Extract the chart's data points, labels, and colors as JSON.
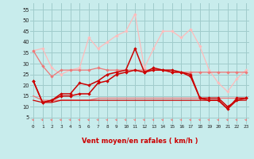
{
  "x": [
    0,
    1,
    2,
    3,
    4,
    5,
    6,
    7,
    8,
    9,
    10,
    11,
    12,
    13,
    14,
    15,
    16,
    17,
    18,
    19,
    20,
    21,
    22,
    23
  ],
  "rafales_light": [
    36,
    37,
    28,
    25,
    27,
    28,
    42,
    37,
    40,
    43,
    45,
    53,
    28,
    37,
    45,
    45,
    42,
    46,
    38,
    27,
    21,
    17,
    23,
    27
  ],
  "rafales_mid": [
    36,
    29,
    24,
    27,
    27,
    27,
    27,
    28,
    27,
    27,
    27,
    27,
    27,
    27,
    27,
    26,
    26,
    26,
    26,
    26,
    26,
    26,
    26,
    26
  ],
  "vent_max": [
    22,
    12,
    13,
    16,
    16,
    21,
    20,
    22,
    25,
    26,
    27,
    37,
    26,
    28,
    27,
    27,
    26,
    25,
    14,
    13,
    13,
    9,
    14,
    14
  ],
  "vent_moy": [
    22,
    12,
    13,
    15,
    15,
    16,
    16,
    21,
    22,
    25,
    26,
    27,
    26,
    27,
    27,
    26,
    26,
    24,
    14,
    14,
    14,
    10,
    13,
    14
  ],
  "vent_min": [
    13,
    12,
    12,
    13,
    13,
    13,
    13,
    13,
    13,
    13,
    13,
    13,
    13,
    13,
    13,
    13,
    13,
    13,
    13,
    13,
    13,
    9,
    13,
    13
  ],
  "flat_mid": [
    15,
    13,
    13,
    13,
    13,
    13,
    13,
    14,
    14,
    14,
    14,
    14,
    14,
    14,
    14,
    14,
    14,
    14,
    14,
    14,
    14,
    14,
    14,
    14
  ],
  "bg_color": "#c8ecec",
  "grid_color": "#a0cccc",
  "dark_red": "#cc0000",
  "mid_red": "#ee7777",
  "light_red": "#ffbbbb",
  "xlabel": "Vent moyen/en rafales ( km/h )",
  "yticks": [
    5,
    10,
    15,
    20,
    25,
    30,
    35,
    40,
    45,
    50,
    55
  ],
  "ylim": [
    2,
    58
  ],
  "xlim": [
    -0.3,
    23.3
  ]
}
